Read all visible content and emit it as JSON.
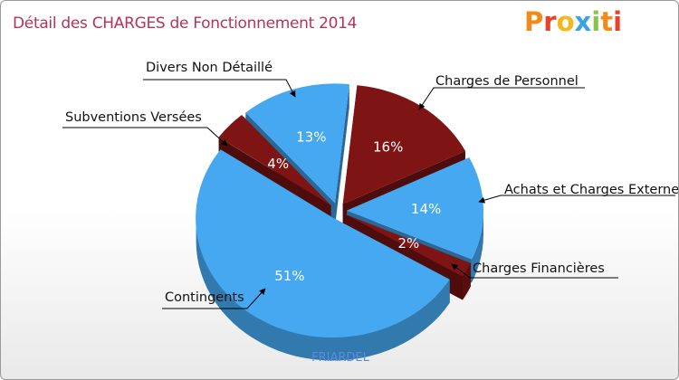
{
  "chart_data": {
    "type": "pie",
    "title": "Détail des CHARGES de Fonctionnement 2014",
    "source_label": "FRIARDEL",
    "slices": [
      {
        "name": "Charges de Personnel",
        "value": 16,
        "label": "16%",
        "color": "#7f1414"
      },
      {
        "name": "Achats et Charges Externes",
        "value": 14,
        "label": "14%",
        "color": "#45a8f0"
      },
      {
        "name": "Charges Financières",
        "value": 2,
        "label": "2%",
        "color": "#7f1414"
      },
      {
        "name": "Contingents",
        "value": 51,
        "label": "51%",
        "color": "#45a8f0"
      },
      {
        "name": "Subventions Versées",
        "value": 4,
        "label": "4%",
        "color": "#7f1414"
      },
      {
        "name": "Divers Non Détaillé",
        "value": 13,
        "label": "13%",
        "color": "#45a8f0"
      }
    ]
  },
  "logo": {
    "letters": [
      "P",
      "r",
      "o",
      "x",
      "i",
      "t",
      "i"
    ],
    "colors": [
      "#f28a1b",
      "#e8412b",
      "#f3b81b",
      "#3aa4e0",
      "#8bc34a",
      "#f28a1b",
      "#e8412b"
    ]
  }
}
